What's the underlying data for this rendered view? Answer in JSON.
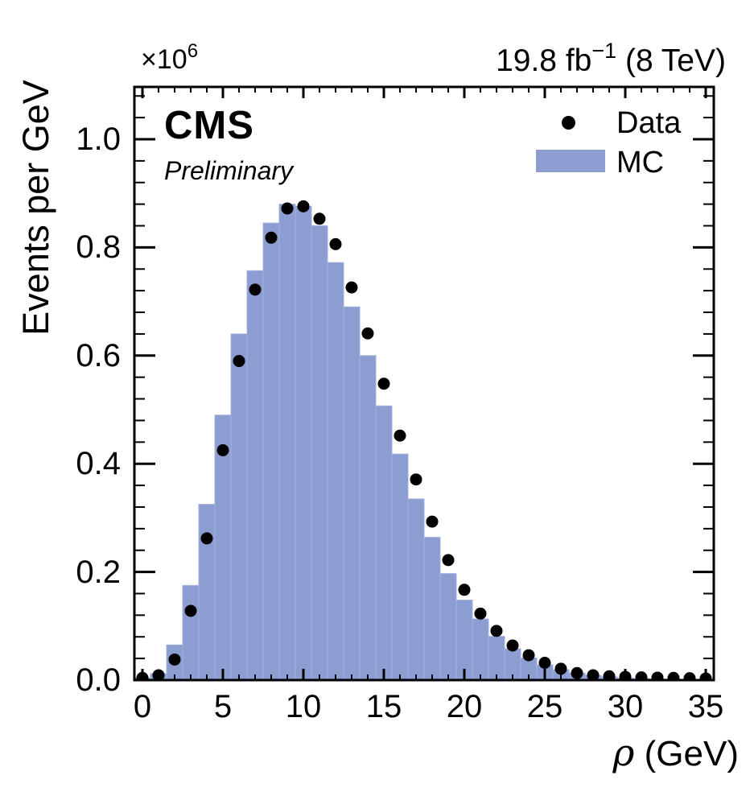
{
  "header": {
    "scale_prefix": "×10",
    "scale_exponent": "6",
    "lumi_prefix": "19.8 fb",
    "lumi_exponent": "−1",
    "lumi_suffix": " (8 TeV)"
  },
  "experiment": {
    "name": "CMS",
    "status": "Preliminary"
  },
  "legend": {
    "data_label": "Data",
    "mc_label": "MC"
  },
  "axes": {
    "y_title": "Events per GeV",
    "x_title_symbol": "ρ",
    "x_title_rest": " (GeV)",
    "y_tick_labels": [
      "0.0",
      "0.2",
      "0.4",
      "0.6",
      "0.8",
      "1.0"
    ],
    "y_tick_values": [
      0.0,
      0.2,
      0.4,
      0.6,
      0.8,
      1.0
    ],
    "x_tick_labels": [
      "0",
      "5",
      "10",
      "15",
      "20",
      "25",
      "30",
      "35"
    ],
    "x_tick_values": [
      0,
      5,
      10,
      15,
      20,
      25,
      30,
      35
    ]
  },
  "colors": {
    "mc_fill": "#8C9DD2",
    "mc_edge": "#A3B1DE",
    "data_marker": "#000000",
    "axis": "#000000",
    "background": "#FFFFFF"
  },
  "chart_data": {
    "type": "bar",
    "title": "",
    "xlabel": "ρ (GeV)",
    "ylabel": "Events per GeV",
    "y_unit_scale": "1e6",
    "xlim": [
      -0.5,
      35.5
    ],
    "ylim": [
      0,
      1.097
    ],
    "grid": false,
    "legend_position": "top-right",
    "bin_width": 1,
    "x": [
      0,
      1,
      2,
      3,
      4,
      5,
      6,
      7,
      8,
      9,
      10,
      11,
      12,
      13,
      14,
      15,
      16,
      17,
      18,
      19,
      20,
      21,
      22,
      23,
      24,
      25,
      26,
      27,
      28,
      29,
      30,
      31,
      32,
      33,
      34,
      35
    ],
    "series": [
      {
        "name": "MC",
        "type": "bar",
        "values": [
          0.004,
          0.012,
          0.065,
          0.175,
          0.325,
          0.49,
          0.64,
          0.757,
          0.845,
          0.88,
          0.876,
          0.84,
          0.772,
          0.69,
          0.6,
          0.507,
          0.418,
          0.335,
          0.264,
          0.197,
          0.148,
          0.113,
          0.081,
          0.058,
          0.041,
          0.028,
          0.019,
          0.013,
          0.009,
          0.006,
          0.004,
          0.003,
          0.002,
          0.0016,
          0.0012,
          0.0009
        ]
      },
      {
        "name": "Data",
        "type": "scatter",
        "values": [
          0.004,
          0.009,
          0.038,
          0.128,
          0.262,
          0.425,
          0.59,
          0.722,
          0.818,
          0.872,
          0.876,
          0.853,
          0.806,
          0.726,
          0.641,
          0.548,
          0.452,
          0.371,
          0.293,
          0.222,
          0.167,
          0.123,
          0.091,
          0.064,
          0.046,
          0.032,
          0.021,
          0.013,
          0.009,
          0.007,
          0.006,
          0.005,
          0.0045,
          0.004,
          0.0035,
          0.003
        ]
      }
    ]
  }
}
